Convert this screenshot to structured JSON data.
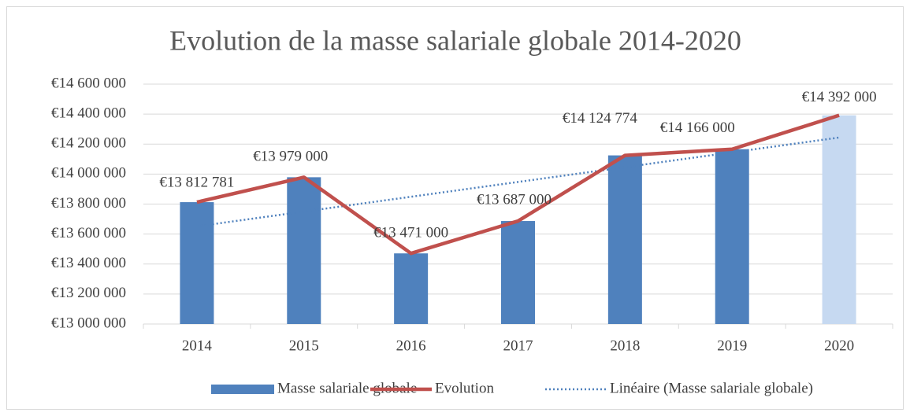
{
  "chart_data": {
    "type": "bar",
    "title": "Evolution de la masse salariale globale 2014-2020",
    "categories": [
      "2014",
      "2015",
      "2016",
      "2017",
      "2018",
      "2019",
      "2020"
    ],
    "series": [
      {
        "name": "Masse salariale globale",
        "type": "bar",
        "color": "#4f81bd",
        "highlight_color": "#c6d9f1",
        "values": [
          13812781,
          13979000,
          13471000,
          13687000,
          14124774,
          14166000,
          14392000
        ]
      },
      {
        "name": "Evolution",
        "type": "line",
        "color": "#c0504d",
        "values": [
          13812781,
          13979000,
          13471000,
          13687000,
          14124774,
          14166000,
          14392000
        ],
        "value_labels": [
          "€13 812 781",
          "€13 979 000",
          "€13 471 000",
          "€13 687 000",
          "€14 124 774",
          "€14 166 000",
          "€14 392 000"
        ]
      }
    ],
    "trendline": {
      "name": "Linéaire (Masse salariale globale)",
      "color": "#4f81bd",
      "kind": "linear"
    },
    "ylim": [
      13000000,
      14600000
    ],
    "yticks": [
      {
        "value": 13000000,
        "label": "€13 000 000"
      },
      {
        "value": 13200000,
        "label": "€13 200 000"
      },
      {
        "value": 13400000,
        "label": "€13 400 000"
      },
      {
        "value": 13600000,
        "label": "€13 600 000"
      },
      {
        "value": 13800000,
        "label": "€13 800 000"
      },
      {
        "value": 14000000,
        "label": "€14 000 000"
      },
      {
        "value": 14200000,
        "label": "€14 200 000"
      },
      {
        "value": 14400000,
        "label": "€14 400 000"
      },
      {
        "value": 14600000,
        "label": "€14 600 000"
      }
    ],
    "grid": true,
    "legend": "bottom"
  }
}
